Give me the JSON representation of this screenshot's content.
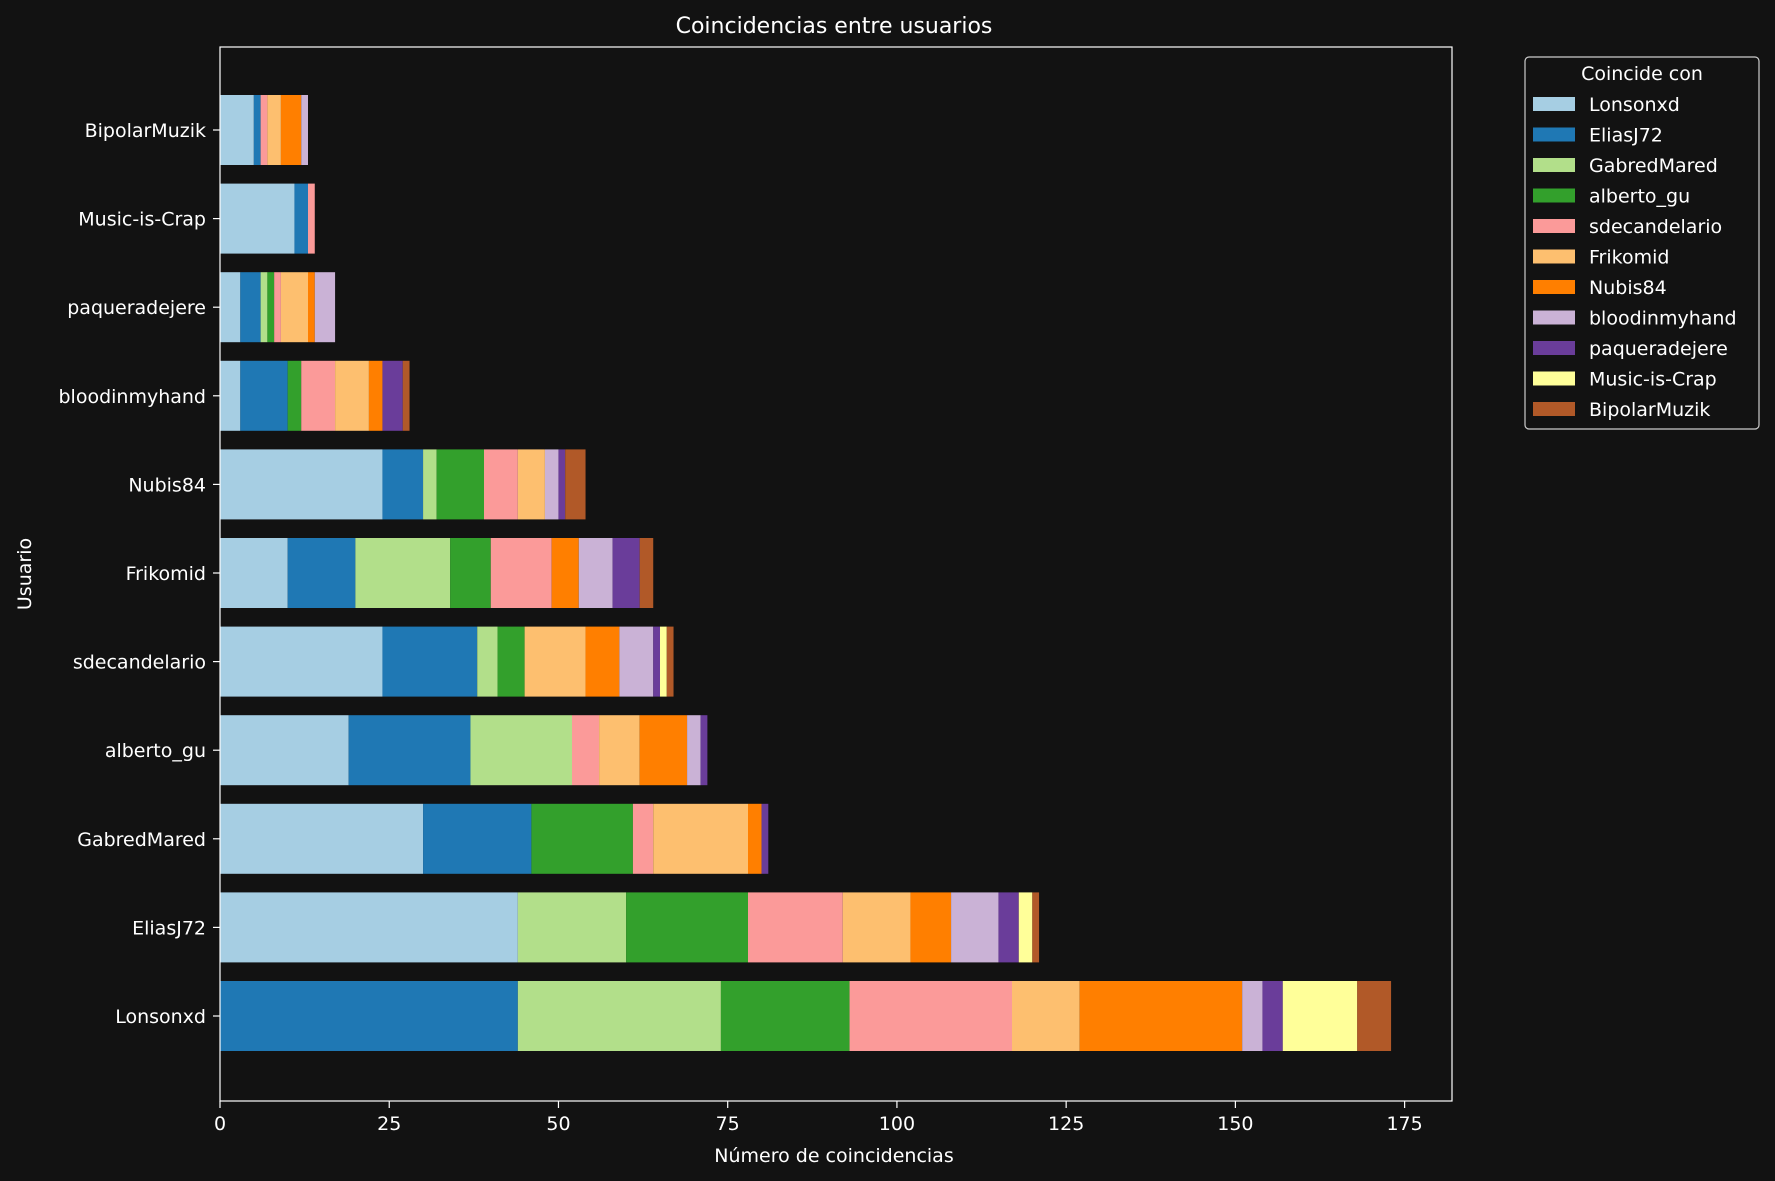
{
  "chart_data": {
    "type": "bar",
    "orientation": "horizontal",
    "stacked": true,
    "title": "Coincidencias entre usuarios",
    "xlabel": "Número de coincidencias",
    "ylabel": "Usuario",
    "xlim": [
      0,
      182
    ],
    "xticks": [
      0,
      25,
      50,
      75,
      100,
      125,
      150,
      175
    ],
    "grid": false,
    "legend": {
      "title": "Coincide con",
      "placement": "outside-top-right"
    },
    "categories": [
      "BipolarMuzik",
      "Music-is-Crap",
      "paqueradejere",
      "bloodinmyhand",
      "Nubis84",
      "Frikomid",
      "sdecandelario",
      "alberto_gu",
      "GabredMared",
      "EliasJ72",
      "Lonsonxd"
    ],
    "series": [
      {
        "name": "Lonsonxd",
        "color": "#a6cee3",
        "values": [
          5,
          11,
          3,
          3,
          24,
          10,
          24,
          19,
          30,
          44,
          0
        ]
      },
      {
        "name": "EliasJ72",
        "color": "#1f78b4",
        "values": [
          1,
          2,
          3,
          7,
          6,
          10,
          14,
          18,
          16,
          0,
          44
        ]
      },
      {
        "name": "GabredMared",
        "color": "#b2df8a",
        "values": [
          0,
          0,
          1,
          0,
          2,
          14,
          3,
          15,
          0,
          16,
          30
        ]
      },
      {
        "name": "alberto_gu",
        "color": "#33a02c",
        "values": [
          0,
          0,
          1,
          2,
          7,
          6,
          4,
          0,
          15,
          18,
          19
        ]
      },
      {
        "name": "sdecandelario",
        "color": "#fb9a99",
        "values": [
          1,
          1,
          1,
          5,
          5,
          9,
          0,
          4,
          3,
          14,
          24
        ]
      },
      {
        "name": "Frikomid",
        "color": "#fdbf6f",
        "values": [
          2,
          0,
          4,
          5,
          4,
          0,
          9,
          6,
          14,
          10,
          10
        ]
      },
      {
        "name": "Nubis84",
        "color": "#ff7f00",
        "values": [
          3,
          0,
          1,
          2,
          0,
          4,
          5,
          7,
          2,
          6,
          24
        ]
      },
      {
        "name": "bloodinmyhand",
        "color": "#cab2d6",
        "values": [
          1,
          0,
          3,
          0,
          2,
          5,
          5,
          2,
          0,
          7,
          3
        ]
      },
      {
        "name": "paqueradejere",
        "color": "#6a3d9a",
        "values": [
          0,
          0,
          0,
          3,
          1,
          4,
          1,
          1,
          1,
          3,
          3
        ]
      },
      {
        "name": "Music-is-Crap",
        "color": "#ffff99",
        "values": [
          0,
          0,
          0,
          0,
          0,
          0,
          1,
          0,
          0,
          2,
          11
        ]
      },
      {
        "name": "BipolarMuzik",
        "color": "#b15928",
        "values": [
          0,
          0,
          0,
          1,
          3,
          2,
          1,
          0,
          0,
          1,
          5
        ]
      }
    ]
  }
}
